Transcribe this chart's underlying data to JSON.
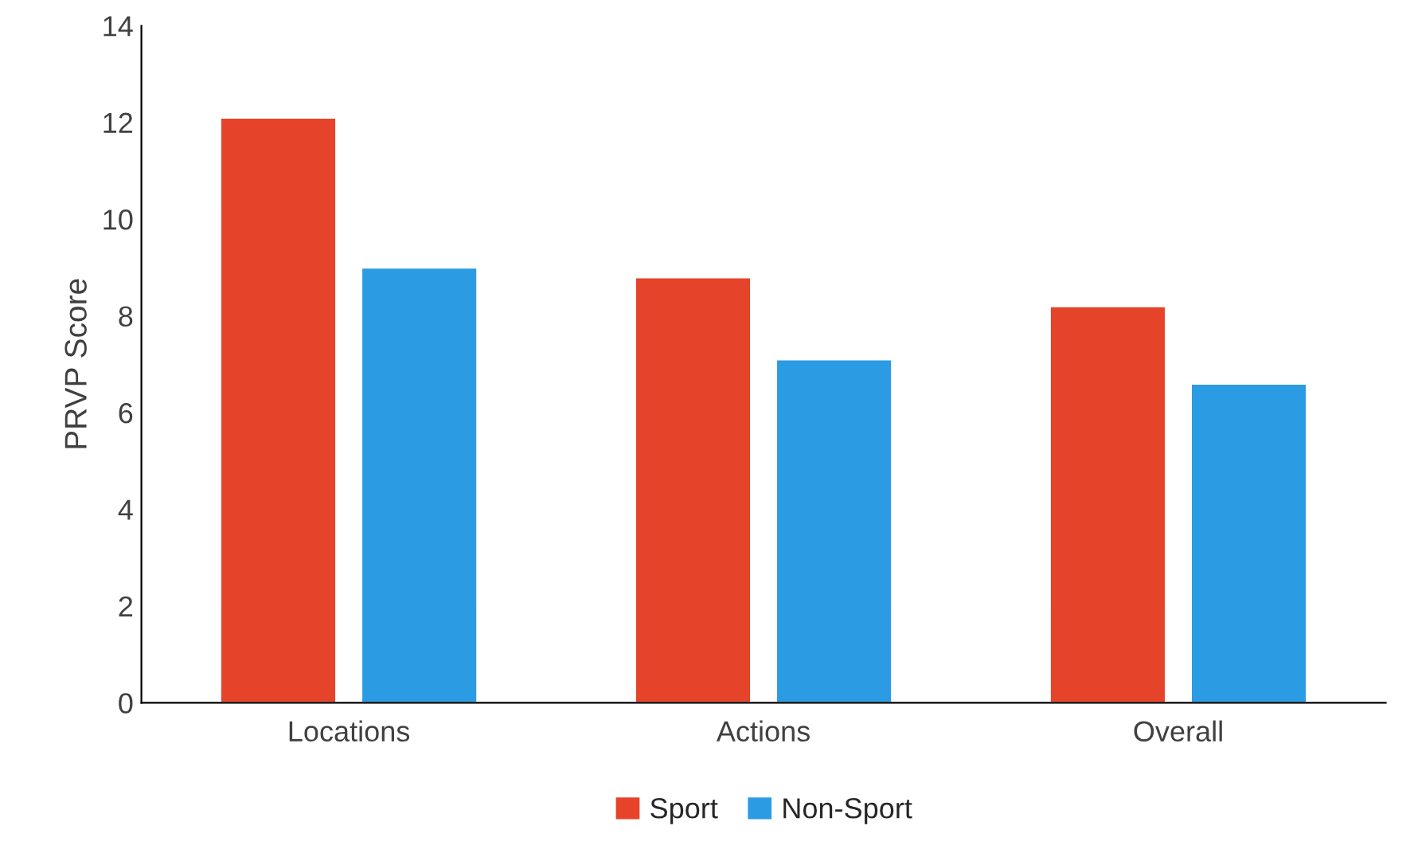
{
  "chart_data": {
    "type": "bar",
    "ylabel": "PRVP Score",
    "categories": [
      "Locations",
      "Actions",
      "Overall"
    ],
    "series": [
      {
        "name": "Sport",
        "color": "#e5432a",
        "values": [
          12.1,
          8.8,
          8.2
        ]
      },
      {
        "name": "Non-Sport",
        "color": "#2b9be3",
        "values": [
          9.0,
          7.1,
          6.6
        ]
      }
    ],
    "ylim": [
      0,
      14
    ],
    "yticks": [
      0,
      2,
      4,
      6,
      8,
      10,
      12,
      14
    ],
    "grid": false,
    "legend": "bottom"
  }
}
